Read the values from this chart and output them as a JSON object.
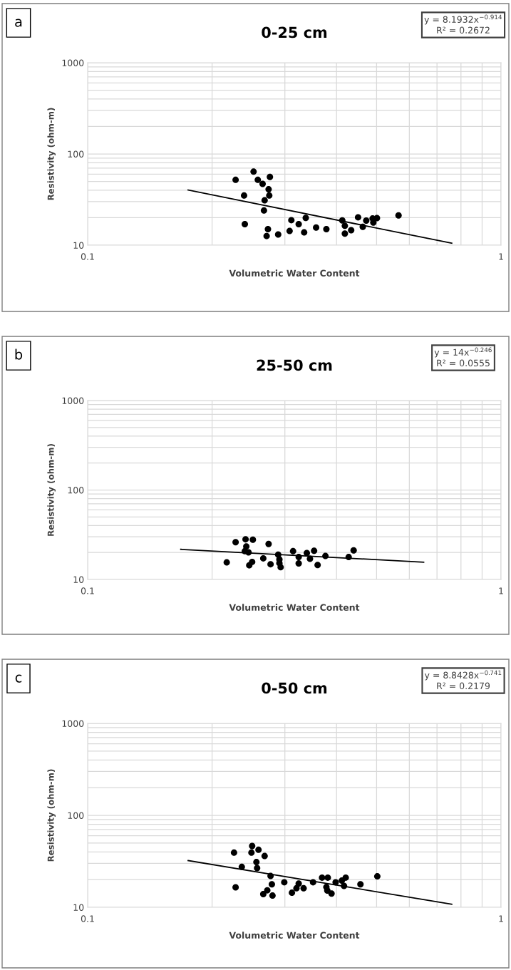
{
  "chart_data": [
    {
      "type": "scatter",
      "title": "0-25 cm",
      "xlabel": "Volumetric Water Content",
      "ylabel": "Resistivity (ohm-m)",
      "annotations": [
        "a",
        "y = 8.1932x$^{−0.914}$",
        "R² = 0.2672"
      ],
      "xlim": [
        0.1,
        1
      ],
      "ylim": [
        10,
        1000
      ],
      "xticks": [
        0.1,
        1
      ],
      "yticks": [
        10,
        100,
        1000
      ],
      "log": "xy",
      "grid": true,
      "series": [
        {
          "marker": "circle",
          "color": "#000000",
          "x": [
            0.228,
            0.252,
            0.276,
            0.258,
            0.265,
            0.274,
            0.239,
            0.275,
            0.268,
            0.267,
            0.24,
            0.273,
            0.271,
            0.289,
            0.311,
            0.324,
            0.337,
            0.308,
            0.334,
            0.357,
            0.378,
            0.413,
            0.419,
            0.419,
            0.434,
            0.451,
            0.463,
            0.472,
            0.489,
            0.501,
            0.491,
            0.565
          ],
          "values": [
            52,
            64,
            56,
            52,
            47,
            41,
            35,
            35,
            31,
            24,
            17,
            15,
            12.6,
            13.1,
            18.8,
            17,
            19.9,
            14.3,
            13.8,
            15.6,
            15,
            18.7,
            16.3,
            13.4,
            14.6,
            20.2,
            15.9,
            18.6,
            19.6,
            19.8,
            17.7,
            21.2
          ]
        },
        {
          "type": "line",
          "color": "#000000",
          "x": [
            0.175,
            0.76
          ],
          "values": [
            40.3,
            10.5
          ]
        }
      ]
    },
    {
      "type": "scatter",
      "title": "25-50 cm",
      "xlabel": "Volumetric Water Content",
      "ylabel": "Resistivity (ohm-m)",
      "annotations": [
        "b",
        "y = 14x$^{−0.246}$",
        "R² = 0.0555"
      ],
      "xlim": [
        0.1,
        1
      ],
      "ylim": [
        10,
        1000
      ],
      "xticks": [
        0.1,
        1
      ],
      "yticks": [
        10,
        100,
        1000
      ],
      "log": "xy",
      "grid": true,
      "series": [
        {
          "marker": "circle",
          "color": "#000000",
          "x": [
            0.228,
            0.241,
            0.251,
            0.274,
            0.242,
            0.24,
            0.245,
            0.217,
            0.246,
            0.25,
            0.266,
            0.277,
            0.289,
            0.291,
            0.291,
            0.293,
            0.314,
            0.324,
            0.324,
            0.339,
            0.345,
            0.353,
            0.36,
            0.376,
            0.428,
            0.44
          ],
          "values": [
            26.1,
            28.1,
            27.8,
            24.9,
            23.4,
            20.7,
            20.1,
            15.5,
            14.4,
            15.7,
            17.2,
            14.8,
            18.9,
            16.7,
            15.2,
            13.7,
            20.7,
            17.8,
            15.1,
            19.7,
            17.0,
            20.9,
            14.5,
            18.3,
            17.8,
            21.1
          ]
        },
        {
          "type": "line",
          "color": "#000000",
          "x": [
            0.168,
            0.65
          ],
          "values": [
            21.7,
            15.6
          ]
        }
      ]
    },
    {
      "type": "scatter",
      "title": "0-50 cm",
      "xlabel": "Volumetric Water Content",
      "ylabel": "Resistivity (ohm-m)",
      "annotations": [
        "c",
        "y = 8.8428x$^{−0.741}$",
        "R² = 0.2179"
      ],
      "xlim": [
        0.1,
        1
      ],
      "ylim": [
        10,
        1000
      ],
      "xticks": [
        0.1,
        1
      ],
      "yticks": [
        10,
        100,
        1000
      ],
      "log": "xy",
      "grid": true,
      "series": [
        {
          "marker": "circle",
          "color": "#000000",
          "x": [
            0.226,
            0.228,
            0.236,
            0.25,
            0.249,
            0.259,
            0.268,
            0.256,
            0.257,
            0.277,
            0.279,
            0.272,
            0.266,
            0.28,
            0.299,
            0.324,
            0.32,
            0.312,
            0.333,
            0.351,
            0.369,
            0.381,
            0.378,
            0.38,
            0.389,
            0.398,
            0.412,
            0.421,
            0.417,
            0.457,
            0.502
          ],
          "values": [
            39.3,
            16.5,
            27.5,
            46.4,
            39.3,
            42.2,
            36.1,
            31.0,
            26.7,
            21.9,
            17.8,
            15.3,
            13.9,
            13.4,
            18.7,
            18.1,
            16.1,
            14.4,
            16.1,
            18.7,
            21.0,
            21.0,
            16.6,
            15.2,
            14.1,
            18.7,
            19.5,
            21.0,
            17.1,
            17.8,
            21.7
          ]
        },
        {
          "type": "line",
          "color": "#000000",
          "x": [
            0.175,
            0.76
          ],
          "values": [
            32.2,
            10.8
          ]
        }
      ]
    }
  ]
}
